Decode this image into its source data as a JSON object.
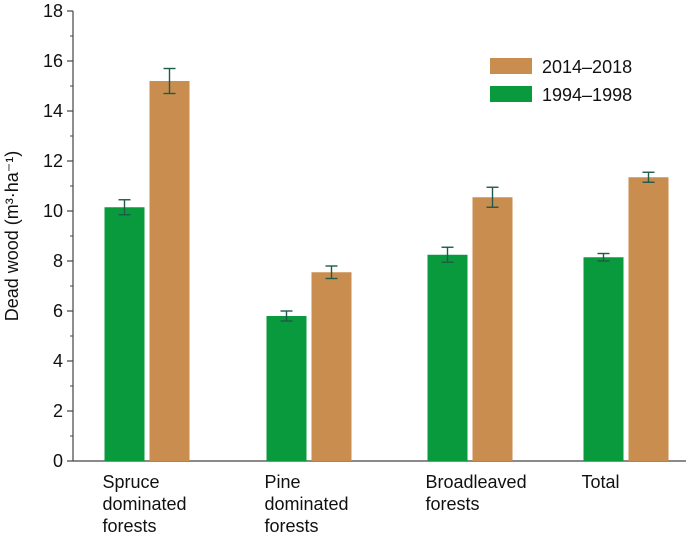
{
  "chart_data": {
    "type": "bar",
    "categories": [
      [
        "Spruce",
        "dominated",
        "forests"
      ],
      [
        "Pine",
        "dominated",
        "forests"
      ],
      [
        "Broadleaved",
        "forests"
      ],
      [
        "Total"
      ]
    ],
    "series": [
      {
        "name": "1994–1998",
        "color": "#0a9a3e",
        "values": [
          10.15,
          5.8,
          8.25,
          8.15
        ],
        "errors": [
          0.3,
          0.2,
          0.3,
          0.15
        ]
      },
      {
        "name": "2014–2018",
        "color": "#c98e4f",
        "values": [
          15.2,
          7.55,
          10.55,
          11.35
        ],
        "errors": [
          0.5,
          0.25,
          0.4,
          0.2
        ]
      }
    ],
    "legend_order": [
      "2014–2018",
      "1994–1998"
    ],
    "legend_position": "top-right",
    "ylabel": "Dead wood (m³·ha⁻¹)",
    "ylim": [
      0,
      18
    ],
    "yticks": [
      0,
      2,
      4,
      6,
      8,
      10,
      12,
      14,
      16,
      18
    ],
    "error_bar_color": "#1f5a4a",
    "grid": false
  }
}
